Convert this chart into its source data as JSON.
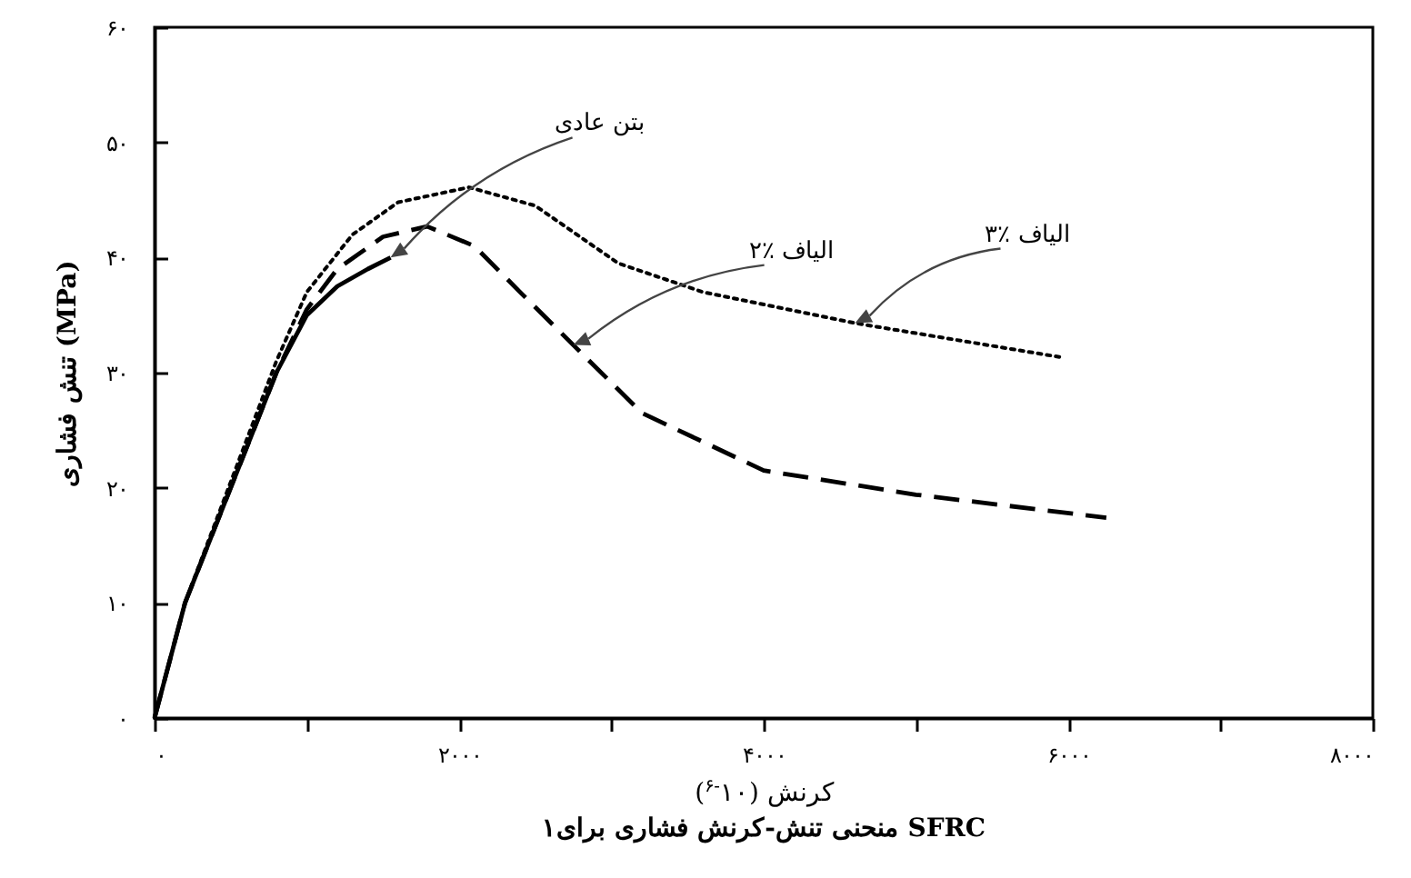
{
  "chart_data": {
    "type": "line",
    "xlabel": "کرنش (۱۰$^{-۶}$)",
    "ylabel": "تنش فشاری (MPa)",
    "xlim": [
      0,
      8000
    ],
    "ylim": [
      0,
      60
    ],
    "xticks": [
      {
        "value": 0,
        "label": "۰"
      },
      {
        "value": 1000,
        "label": null
      },
      {
        "value": 2000,
        "label": "۲۰۰۰"
      },
      {
        "value": 3000,
        "label": null
      },
      {
        "value": 4000,
        "label": "۴۰۰۰"
      },
      {
        "value": 5000,
        "label": null
      },
      {
        "value": 6000,
        "label": "۶۰۰۰"
      },
      {
        "value": 7000,
        "label": null
      },
      {
        "value": 8000,
        "label": "۸۰۰۰"
      }
    ],
    "yticks": [
      {
        "value": 0,
        "label": "۰"
      },
      {
        "value": 10,
        "label": "۱۰"
      },
      {
        "value": 20,
        "label": "۲۰"
      },
      {
        "value": 30,
        "label": "۳۰"
      },
      {
        "value": 40,
        "label": "۴۰"
      },
      {
        "value": 50,
        "label": "۵۰"
      },
      {
        "value": 60,
        "label": "۶۰"
      }
    ],
    "grid": false,
    "marker": "none",
    "series": [
      {
        "color": "#000000",
        "line_style": "solid",
        "x": [
          0,
          200,
          500,
          800,
          1000,
          1200,
          1400,
          1550
        ],
        "values": [
          0,
          10,
          20,
          30,
          35,
          37.5,
          39,
          40
        ]
      },
      {
        "color": "#000000",
        "line_style": "dashed",
        "x": [
          0,
          200,
          500,
          800,
          1000,
          1200,
          1500,
          1790,
          2100,
          2400,
          2750,
          3200,
          4000,
          5000,
          6250
        ],
        "values": [
          0,
          10,
          20,
          30,
          35.5,
          39,
          41.8,
          42.7,
          41,
          37,
          32.4,
          26.5,
          21.5,
          19.4,
          17.4
        ]
      },
      {
        "color": "#000000",
        "line_style": "dotted",
        "x": [
          0,
          200,
          500,
          800,
          1000,
          1300,
          1600,
          2065,
          2500,
          3045,
          3600,
          4600,
          5970
        ],
        "values": [
          0,
          10,
          20.5,
          31,
          37,
          42,
          44.8,
          46.1,
          44.5,
          39.5,
          37,
          34.3,
          31.3
        ]
      }
    ],
    "annotations": [
      {
        "text": "بتن عادی",
        "x": 1550,
        "y": 40
      },
      {
        "text": "۲٪ الیاف",
        "x": 2750,
        "y": 32.4
      },
      {
        "text": "۳٪ الیاف",
        "x": 4600,
        "y": 34.3
      },
      "۱منحنی تنش-کرنش فشاری برای SFRC"
    ]
  }
}
